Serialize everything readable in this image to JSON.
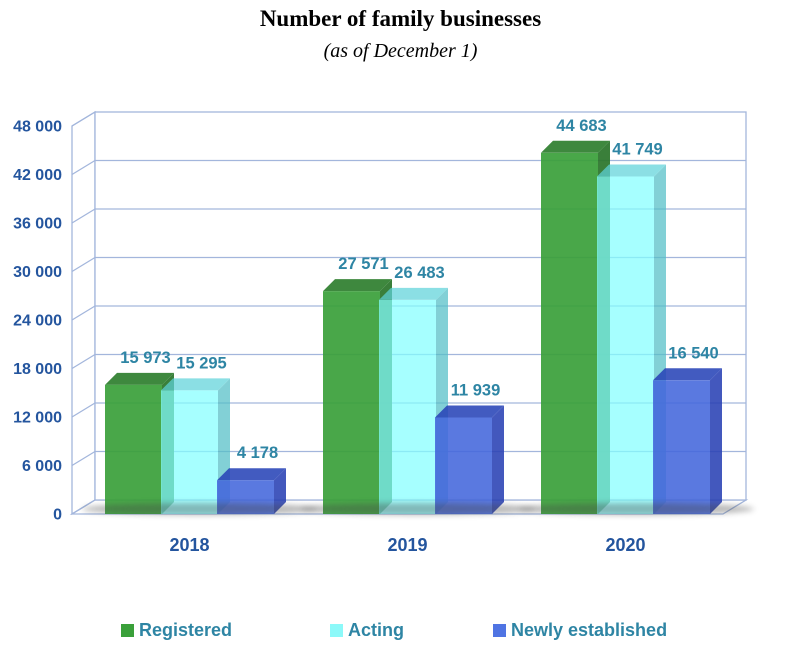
{
  "chart_data": {
    "type": "bar",
    "style": "3d-clustered-column",
    "title": "Number of family businesses",
    "subtitle": "(as of December 1)",
    "categories": [
      "2018",
      "2019",
      "2020"
    ],
    "series": [
      {
        "name": "Registered",
        "values": [
          15973,
          27571,
          44683
        ],
        "color_front": "#3AA03A",
        "color_top": "#2E7E2E",
        "color_side": "#2A752A",
        "legend_swatch": "#3AA03A",
        "opacity": 0.92
      },
      {
        "name": "Acting",
        "values": [
          15295,
          26483,
          41749
        ],
        "color_front": "#84FFFF",
        "color_top": "#5FD3DA",
        "color_side": "#53BFC7",
        "legend_swatch": "#8CF9F9",
        "opacity": 0.72
      },
      {
        "name": "Newly established",
        "values": [
          4178,
          11939,
          16540
        ],
        "color_front": "#4467DC",
        "color_top": "#2945B8",
        "color_side": "#2A41B5",
        "legend_swatch": "#4F74E3",
        "opacity": 0.88
      }
    ],
    "ylim": [
      0,
      48000
    ],
    "ytick_step": 6000,
    "ytick_labels": [
      "48 000",
      "42 000",
      "36 000",
      "30 000",
      "24 000",
      "18 000",
      "12 000",
      "6 000",
      "0"
    ],
    "xlabel": "",
    "ylabel": "",
    "grid": true,
    "data_labels": "above-bars",
    "legend_position": "bottom",
    "colors": {
      "axis_text": "#24559E",
      "value_label_text": "#2E85A4",
      "legend_text": "#2E85A4",
      "gridline": "#A3B6DC",
      "wall_fill": "#FFFFFF",
      "title_text": "#000000"
    }
  }
}
